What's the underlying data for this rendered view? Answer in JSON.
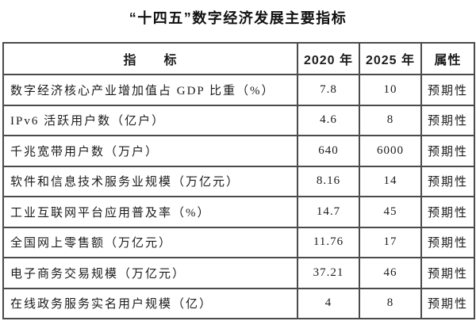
{
  "title": "“十四五”数字经济发展主要指标",
  "colors": {
    "background": "#ffffff",
    "border": "#4b4b4b",
    "text": "#1c1c1c"
  },
  "table": {
    "headers": [
      "指　　标",
      "2020 年",
      "2025 年",
      "属性"
    ],
    "rows": [
      {
        "indicator": "数字经济核心产业增加值占 GDP 比重（%）",
        "v2020": "7.8",
        "v2025": "10",
        "attr": "预期性"
      },
      {
        "indicator": "IPv6 活跃用户数（亿户）",
        "v2020": "4.6",
        "v2025": "8",
        "attr": "预期性"
      },
      {
        "indicator": "千兆宽带用户数（万户）",
        "v2020": "640",
        "v2025": "6000",
        "attr": "预期性"
      },
      {
        "indicator": "软件和信息技术服务业规模（万亿元）",
        "v2020": "8.16",
        "v2025": "14",
        "attr": "预期性"
      },
      {
        "indicator": "工业互联网平台应用普及率（%）",
        "v2020": "14.7",
        "v2025": "45",
        "attr": "预期性"
      },
      {
        "indicator": "全国网上零售额（万亿元）",
        "v2020": "11.76",
        "v2025": "17",
        "attr": "预期性"
      },
      {
        "indicator": "电子商务交易规模（万亿元）",
        "v2020": "37.21",
        "v2025": "46",
        "attr": "预期性"
      },
      {
        "indicator": "在线政务服务实名用户规模（亿）",
        "v2020": "4",
        "v2025": "8",
        "attr": "预期性"
      }
    ]
  }
}
